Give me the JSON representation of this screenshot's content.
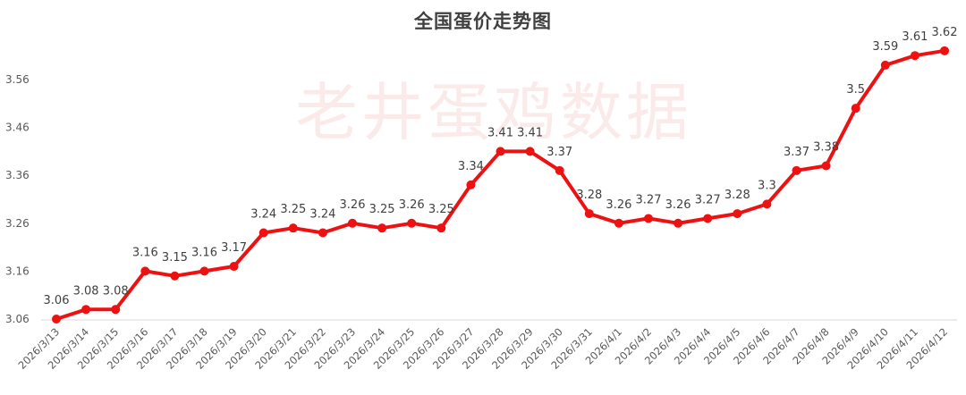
{
  "chart_data": {
    "type": "line",
    "title": "全国蛋价走势图",
    "watermark": "老井蛋鸡数据",
    "xlabel": "",
    "ylabel": "",
    "ylim": [
      3.06,
      3.62
    ],
    "yticks": [
      "3.06",
      "3.16",
      "3.26",
      "3.36",
      "3.46",
      "3.56"
    ],
    "grid": false,
    "legend": "none",
    "line_color": "#ee1111",
    "categories": [
      "2026/3/13",
      "2026/3/14",
      "2026/3/15",
      "2026/3/16",
      "2026/3/17",
      "2026/3/18",
      "2026/3/19",
      "2026/3/20",
      "2026/3/21",
      "2026/3/22",
      "2026/3/23",
      "2026/3/24",
      "2026/3/25",
      "2026/3/26",
      "2026/3/27",
      "2026/3/28",
      "2026/3/29",
      "2026/3/30",
      "2026/3/31",
      "2026/4/1",
      "2026/4/2",
      "2026/4/3",
      "2026/4/4",
      "2026/4/5",
      "2026/4/6",
      "2026/4/7",
      "2026/4/8",
      "2026/4/9",
      "2026/4/10",
      "2026/4/11",
      "2026/4/12"
    ],
    "values": [
      3.06,
      3.08,
      3.08,
      3.16,
      3.15,
      3.16,
      3.17,
      3.24,
      3.25,
      3.24,
      3.26,
      3.25,
      3.26,
      3.25,
      3.34,
      3.41,
      3.41,
      3.37,
      3.28,
      3.26,
      3.27,
      3.26,
      3.27,
      3.28,
      3.3,
      3.37,
      3.38,
      3.5,
      3.59,
      3.61,
      3.62
    ],
    "labels": [
      "3.06",
      "3.08",
      "3.08",
      "3.16",
      "3.15",
      "3.16",
      "3.17",
      "3.24",
      "3.25",
      "3.24",
      "3.26",
      "3.25",
      "3.26",
      "3.25",
      "3.34",
      "3.41",
      "3.41",
      "3.37",
      "3.28",
      "3.26",
      "3.27",
      "3.26",
      "3.27",
      "3.28",
      "3.3",
      "3.37",
      "3.38",
      "3.5",
      "3.59",
      "3.61",
      "3.62"
    ]
  }
}
